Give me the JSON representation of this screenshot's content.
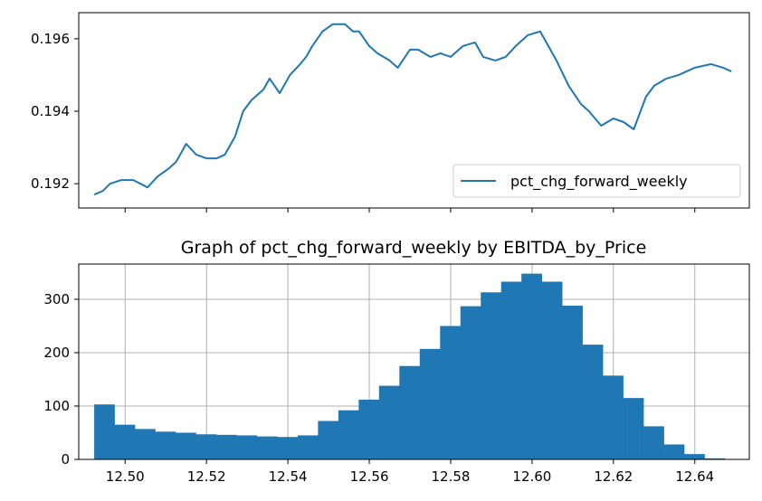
{
  "colors": {
    "series": "#1f77b4",
    "grid": "#b0b0b0",
    "axes": "#000000"
  },
  "chart_data": [
    {
      "type": "line",
      "title": "",
      "xlabel": "",
      "ylabel": "",
      "xlim": [
        12.4886,
        12.6534
      ],
      "ylim": [
        0.19133,
        0.19672
      ],
      "yticks": [
        "0.192",
        "0.194",
        "0.196"
      ],
      "xticks_unlabeled": [
        12.5,
        12.52,
        12.54,
        12.56,
        12.58,
        12.6,
        12.62,
        12.64
      ],
      "legend": {
        "placement": "lower right",
        "entries": [
          "pct_chg_forward_weekly"
        ]
      },
      "grid": false,
      "series": [
        {
          "name": "pct_chg_forward_weekly",
          "x": [
            12.4924,
            12.4945,
            12.4963,
            12.499,
            12.502,
            12.5055,
            12.508,
            12.5105,
            12.5125,
            12.515,
            12.5175,
            12.52,
            12.5225,
            12.5245,
            12.527,
            12.529,
            12.531,
            12.534,
            12.5355,
            12.538,
            12.5405,
            12.543,
            12.5445,
            12.546,
            12.5485,
            12.551,
            12.554,
            12.556,
            12.5575,
            12.56,
            12.562,
            12.565,
            12.567,
            12.57,
            12.572,
            12.575,
            12.5775,
            12.58,
            12.583,
            12.586,
            12.588,
            12.591,
            12.5935,
            12.596,
            12.599,
            12.602,
            12.604,
            12.606,
            12.609,
            12.612,
            12.614,
            12.617,
            12.62,
            12.6225,
            12.625,
            12.628,
            12.63,
            12.633,
            12.636,
            12.64,
            12.644,
            12.647,
            12.649
          ],
          "y": [
            0.1917,
            0.1918,
            0.192,
            0.1921,
            0.1921,
            0.1919,
            0.1922,
            0.1924,
            0.1926,
            0.1931,
            0.1928,
            0.1927,
            0.1927,
            0.1928,
            0.1933,
            0.194,
            0.1943,
            0.1946,
            0.1949,
            0.1945,
            0.195,
            0.1953,
            0.1955,
            0.1958,
            0.1962,
            0.1964,
            0.1964,
            0.1962,
            0.1962,
            0.1958,
            0.1956,
            0.1954,
            0.1952,
            0.1957,
            0.1957,
            0.1955,
            0.1956,
            0.1955,
            0.1958,
            0.1959,
            0.1955,
            0.1954,
            0.1955,
            0.1958,
            0.1961,
            0.1962,
            0.1958,
            0.1954,
            0.1947,
            0.1942,
            0.194,
            0.1936,
            0.1938,
            0.1937,
            0.1935,
            0.1944,
            0.1947,
            0.1949,
            0.195,
            0.1952,
            0.1953,
            0.1952,
            0.1951
          ]
        }
      ]
    },
    {
      "type": "bar",
      "title": "Graph of pct_chg_forward_weekly by EBITDA_by_Price",
      "xlabel": "",
      "ylabel": "",
      "xlim": [
        12.4886,
        12.6534
      ],
      "ylim": [
        0,
        366
      ],
      "xticks": [
        "12.50",
        "12.52",
        "12.54",
        "12.56",
        "12.58",
        "12.60",
        "12.62",
        "12.64"
      ],
      "yticks": [
        "0",
        "100",
        "200",
        "300"
      ],
      "grid": true,
      "bin_start": 12.4924,
      "bin_width": 0.005,
      "values": [
        103,
        65,
        57,
        52,
        50,
        47,
        46,
        45,
        43,
        42,
        45,
        72,
        92,
        112,
        138,
        175,
        207,
        250,
        287,
        313,
        333,
        348,
        333,
        288,
        215,
        157,
        115,
        62,
        28,
        10,
        2
      ]
    }
  ]
}
